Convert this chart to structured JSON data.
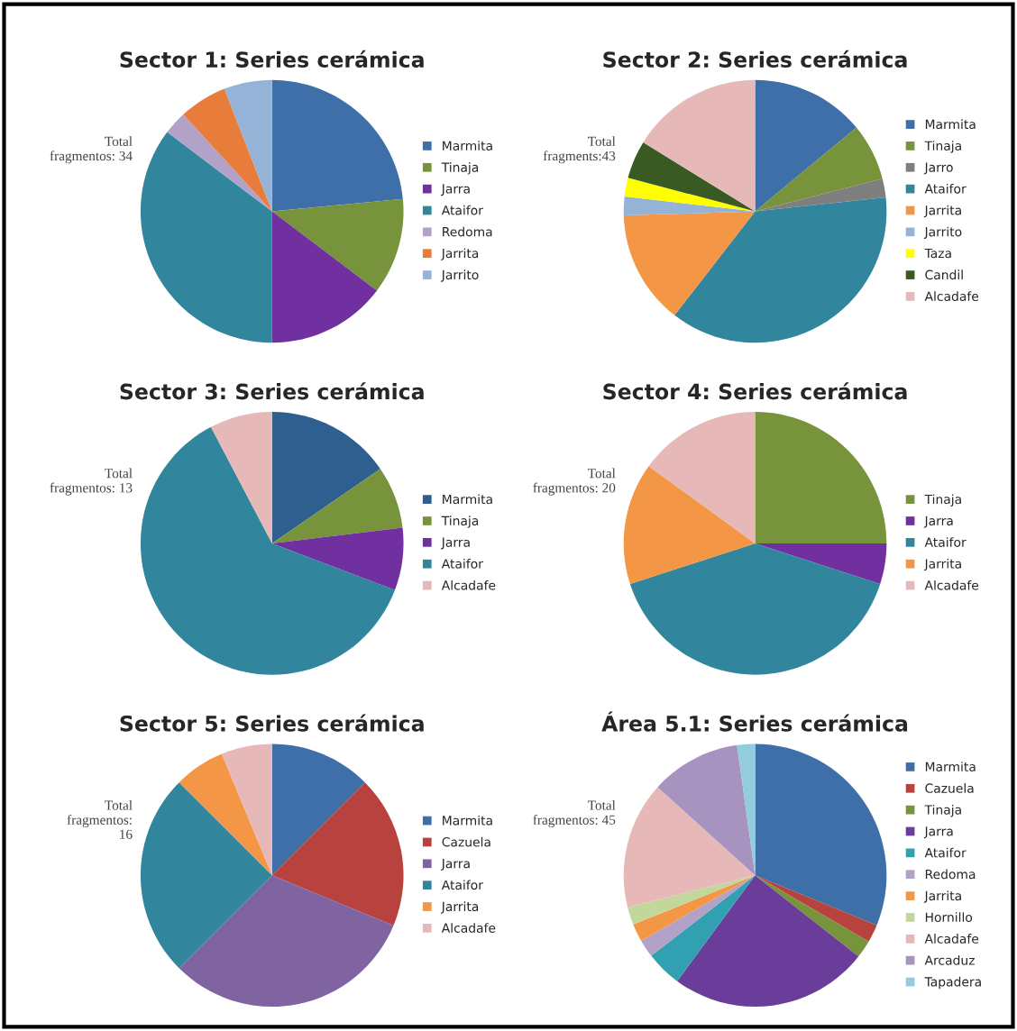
{
  "chart_data": [
    {
      "type": "pie",
      "title": "Sector 1: Series cerámica",
      "legend": "right",
      "annotations": [
        "Total\nfragmentos: 34"
      ],
      "categories": [
        "Marmita",
        "Tinaja",
        "Jarra",
        "Ataifor",
        "Redoma",
        "Jarrita",
        "Jarrito"
      ],
      "values": [
        23.5,
        11.8,
        14.7,
        35.3,
        2.9,
        5.9,
        5.9
      ],
      "colors": [
        "#3e6fa8",
        "#77933c",
        "#7030a0",
        "#31859c",
        "#b3a2c7",
        "#e87c3a",
        "#95b3d7"
      ]
    },
    {
      "type": "pie",
      "title": "Sector 2: Series cerámica",
      "legend": "right",
      "annotations": [
        "Total\nfragments:43"
      ],
      "categories": [
        "Marmita",
        "Tinaja",
        "Jarro",
        "Ataifor",
        "Jarrita",
        "Jarrito",
        "Taza",
        "Candil",
        "Alcadafe"
      ],
      "values": [
        14.0,
        7.0,
        2.3,
        37.2,
        14.0,
        2.3,
        2.3,
        4.7,
        16.2
      ],
      "colors": [
        "#3e6fa8",
        "#77933c",
        "#7f7f7f",
        "#31859c",
        "#f39646",
        "#95b3d7",
        "#ffff00",
        "#3a5a23",
        "#e6b9b8"
      ]
    },
    {
      "type": "pie",
      "title": "Sector 3: Series cerámica",
      "legend": "right",
      "annotations": [
        "Total\nfragmentos: 13"
      ],
      "categories": [
        "Marmita",
        "Tinaja",
        "Jarra",
        "Ataifor",
        "Alcadafe"
      ],
      "values": [
        15.4,
        7.7,
        7.7,
        61.5,
        7.7
      ],
      "colors": [
        "#2f5f8f",
        "#77933c",
        "#7030a0",
        "#31859c",
        "#e6b9b8"
      ]
    },
    {
      "type": "pie",
      "title": "Sector 4: Series cerámica",
      "legend": "right",
      "annotations": [
        "Total\nfragmentos: 20"
      ],
      "categories": [
        "Tinaja",
        "Jarra",
        "Ataifor",
        "Jarrita",
        "Alcadafe"
      ],
      "values": [
        25,
        5,
        40,
        15,
        15
      ],
      "colors": [
        "#77933c",
        "#7030a0",
        "#31859c",
        "#f39646",
        "#e6b9b8"
      ]
    },
    {
      "type": "pie",
      "title": "Sector 5: Series cerámica",
      "legend": "right",
      "annotations": [
        "Total\nfragmentos:\n16"
      ],
      "categories": [
        "Marmita",
        "Cazuela",
        "Jarra",
        "Ataifor",
        "Jarrita",
        "Alcadafe"
      ],
      "values": [
        12.5,
        18.75,
        31.25,
        25,
        6.25,
        6.25
      ],
      "colors": [
        "#3e6fa8",
        "#b8423e",
        "#8064a2",
        "#31859c",
        "#f39646",
        "#e6b9b8"
      ]
    },
    {
      "type": "pie",
      "title": "Área 5.1: Series cerámica",
      "legend": "right",
      "annotations": [
        "Total\nfragmentos: 45"
      ],
      "categories": [
        "Marmita",
        "Cazuela",
        "Tinaja",
        "Jarra",
        "Ataifor",
        "Redoma",
        "Jarrita",
        "Hornillo",
        "Alcadafe",
        "Arcaduz",
        "Tapadera"
      ],
      "values": [
        31.2,
        2.2,
        2.2,
        24.5,
        4.4,
        2.2,
        2.2,
        2.2,
        15.6,
        11.1,
        2.2
      ],
      "colors": [
        "#3e6fa8",
        "#b8423e",
        "#77933c",
        "#6a3d9a",
        "#31a0b0",
        "#b3a2c7",
        "#f39646",
        "#c4d79b",
        "#e6b9b8",
        "#a693c0",
        "#93cddd"
      ]
    }
  ]
}
